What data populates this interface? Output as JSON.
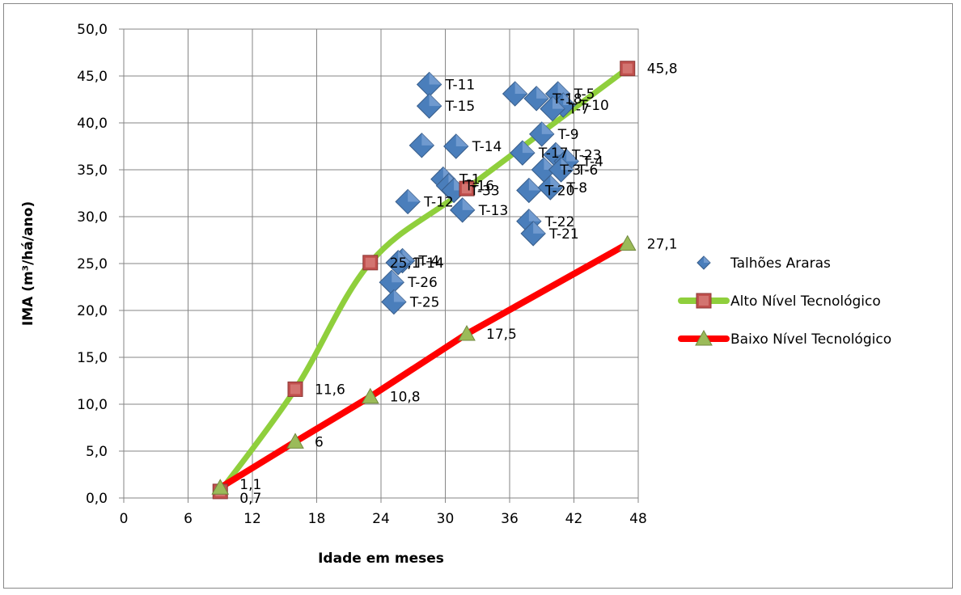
{
  "chart_data": {
    "type": "scatter",
    "xlabel": "Idade em meses",
    "ylabel": "IMA (m³/há/ano)",
    "xlim": [
      0,
      48
    ],
    "ylim": [
      0,
      50
    ],
    "x_ticks": [
      "0",
      "6",
      "12",
      "18",
      "24",
      "30",
      "36",
      "42",
      "48"
    ],
    "y_ticks": [
      "0,0",
      "5,0",
      "10,0",
      "15,0",
      "20,0",
      "25,0",
      "30,0",
      "35,0",
      "40,0",
      "45,0",
      "50,0"
    ],
    "grid": true,
    "legend_position": "right",
    "series": [
      {
        "name": "Talhões Araras",
        "kind": "scatter",
        "marker": "diamond",
        "color": "#4a7ebb",
        "points": [
          {
            "x": 28.5,
            "y": 44.1,
            "label": "T-11"
          },
          {
            "x": 28.5,
            "y": 41.8,
            "label": "T-15"
          },
          {
            "x": 36.5,
            "y": 43.1,
            "label": ""
          },
          {
            "x": 38.5,
            "y": 42.6,
            "label": "T-18"
          },
          {
            "x": 40.5,
            "y": 43.1,
            "label": "T-5"
          },
          {
            "x": 41.0,
            "y": 41.9,
            "label": "T-10"
          },
          {
            "x": 40.0,
            "y": 41.5,
            "label": "T-7"
          },
          {
            "x": 39.0,
            "y": 38.8,
            "label": "T-9"
          },
          {
            "x": 27.8,
            "y": 37.6,
            "label": ""
          },
          {
            "x": 31.0,
            "y": 37.5,
            "label": "T-14"
          },
          {
            "x": 37.2,
            "y": 36.8,
            "label": "T-17"
          },
          {
            "x": 40.3,
            "y": 36.6,
            "label": "T-23"
          },
          {
            "x": 41.3,
            "y": 35.9,
            "label": "T-4"
          },
          {
            "x": 39.2,
            "y": 35.0,
            "label": "T-3"
          },
          {
            "x": 40.8,
            "y": 35.0,
            "label": "T-6"
          },
          {
            "x": 29.8,
            "y": 34.0,
            "label": "T-1"
          },
          {
            "x": 30.3,
            "y": 33.3,
            "label": "T-16"
          },
          {
            "x": 30.8,
            "y": 32.8,
            "label": "T-33"
          },
          {
            "x": 37.8,
            "y": 32.8,
            "label": "T-20"
          },
          {
            "x": 39.8,
            "y": 33.1,
            "label": "T-8"
          },
          {
            "x": 26.5,
            "y": 31.6,
            "label": "T-12"
          },
          {
            "x": 31.6,
            "y": 30.7,
            "label": "T-13"
          },
          {
            "x": 37.8,
            "y": 29.5,
            "label": "T-22"
          },
          {
            "x": 38.2,
            "y": 28.2,
            "label": "T-21"
          },
          {
            "x": 26.0,
            "y": 25.3,
            "label": "T-4"
          },
          {
            "x": 25.6,
            "y": 25.1,
            "label": "T-14"
          },
          {
            "x": 25.0,
            "y": 23.0,
            "label": "T-26"
          },
          {
            "x": 25.2,
            "y": 20.9,
            "label": "T-25"
          }
        ]
      },
      {
        "name": "Alto Nível Tecnológico",
        "kind": "line",
        "marker": "square",
        "line_color": "#8fcf3c",
        "marker_color": "#c0504d",
        "points": [
          {
            "x": 9,
            "y": 0.7,
            "label": "0,7"
          },
          {
            "x": 16,
            "y": 11.6,
            "label": "11,6"
          },
          {
            "x": 23,
            "y": 25.1,
            "label": "25,1"
          },
          {
            "x": 32,
            "y": 33.0,
            "label": ""
          },
          {
            "x": 47,
            "y": 45.8,
            "label": "45,8"
          }
        ]
      },
      {
        "name": "Baixo Nível Tecnológico",
        "kind": "line",
        "marker": "triangle",
        "line_color": "#ff0000",
        "marker_color": "#9bbb59",
        "points": [
          {
            "x": 9,
            "y": 1.1,
            "label": "1,1"
          },
          {
            "x": 16,
            "y": 6.0,
            "label": "6"
          },
          {
            "x": 23,
            "y": 10.8,
            "label": "10,8"
          },
          {
            "x": 32,
            "y": 17.5,
            "label": "17,5"
          },
          {
            "x": 47,
            "y": 27.1,
            "label": "27,1"
          }
        ]
      }
    ]
  }
}
